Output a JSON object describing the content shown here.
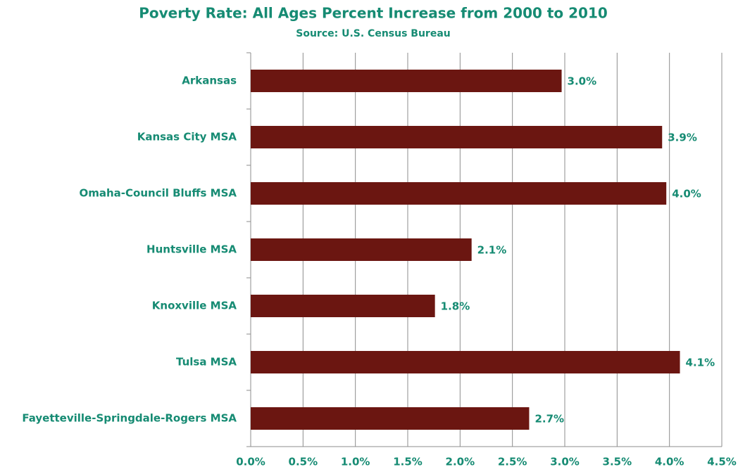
{
  "chart_data": {
    "type": "bar",
    "orientation": "horizontal",
    "title": "Poverty Rate: All Ages Percent Increase from 2000 to 2010",
    "subtitle": "Source: U.S. Census Bureau",
    "categories": [
      "Arkansas",
      "Kansas City MSA",
      "Omaha-Council Bluffs MSA",
      "Huntsville MSA",
      "Knoxville MSA",
      "Tulsa MSA",
      "Fayetteville-Springdale-Rogers MSA"
    ],
    "values": [
      2.97,
      3.93,
      3.97,
      2.11,
      1.76,
      4.1,
      2.66
    ],
    "value_labels": [
      "3.0%",
      "3.9%",
      "4.0%",
      "2.1%",
      "1.8%",
      "4.1%",
      "2.7%"
    ],
    "color": "#6b1611",
    "xlim": [
      0,
      4.5
    ],
    "xticks": [
      {
        "value": 0,
        "label": "0.0%"
      },
      {
        "value": 0.5,
        "label": "0.5%"
      },
      {
        "value": 1,
        "label": "1.0%"
      },
      {
        "value": 1.5,
        "label": "1.5%"
      },
      {
        "value": 2,
        "label": "2.0%"
      },
      {
        "value": 2.5,
        "label": "2.5%"
      },
      {
        "value": 3,
        "label": "3.0%"
      },
      {
        "value": 3.5,
        "label": "3.5%"
      },
      {
        "value": 4,
        "label": "4.0%"
      },
      {
        "value": 4.5,
        "label": "4.5%"
      }
    ],
    "grid": true
  }
}
